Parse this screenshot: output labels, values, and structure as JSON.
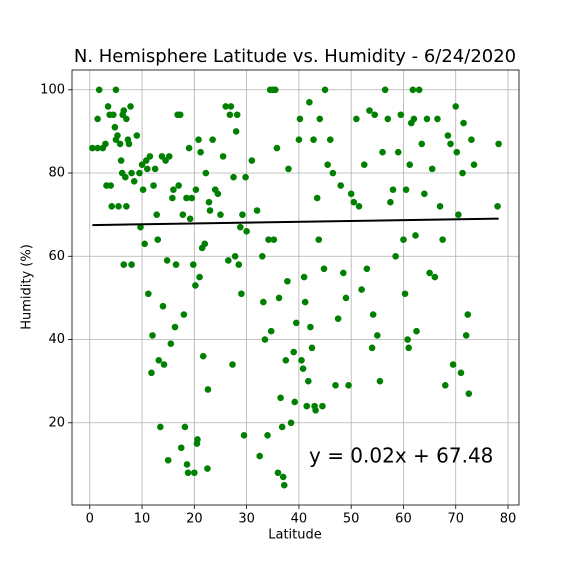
{
  "chart_data": {
    "type": "scatter",
    "title": "N. Hemisphere Latitude vs. Humidity - 6/24/2020",
    "x_label": "Latitude",
    "y_label": "Humidity (%)",
    "annotation": "y = 0.02x + 67.48",
    "color": "#008000",
    "grid": true,
    "xlim": [
      -3.4,
      82.1
    ],
    "ylim": [
      0.25,
      104.75
    ],
    "xticks": [
      0,
      10,
      20,
      30,
      40,
      50,
      60,
      70,
      80
    ],
    "yticks": [
      20,
      40,
      60,
      80,
      100
    ],
    "x": [
      0.5,
      1.5,
      1.8,
      1.5,
      2.5,
      3,
      3.2,
      3.5,
      3.8,
      4,
      4.2,
      4.5,
      4.8,
      5,
      5,
      5.3,
      5.5,
      5.8,
      6,
      6.2,
      6.3,
      6.5,
      6.5,
      6.8,
      7,
      7,
      7.3,
      7.5,
      7.8,
      8,
      8,
      8.5,
      9,
      9.5,
      9.7,
      10,
      10.2,
      10.5,
      10.8,
      11,
      11.2,
      11.5,
      11.8,
      12,
      12.2,
      12.5,
      12.8,
      13,
      13.2,
      13.5,
      13.8,
      14,
      14.2,
      14.5,
      14.8,
      15,
      15.2,
      15.5,
      15.8,
      16,
      16.3,
      16.5,
      16.8,
      17,
      17.3,
      17.5,
      17.8,
      18,
      18.2,
      18.5,
      18.6,
      18.8,
      19,
      19.2,
      19.5,
      19.8,
      20,
      20.2,
      20.3,
      20.5,
      20.6,
      20.8,
      21,
      21.2,
      21.5,
      21.7,
      22,
      22.2,
      22.5,
      22.6,
      22.8,
      23,
      23.5,
      24,
      24.5,
      25,
      25.5,
      26,
      26.5,
      26.8,
      27,
      27.3,
      27.5,
      27.8,
      28,
      28.2,
      28.5,
      28.8,
      29,
      29.2,
      29.5,
      29.8,
      30,
      31,
      32,
      32.5,
      33,
      33.2,
      33.5,
      34,
      34.2,
      34.5,
      34.7,
      35,
      35.2,
      35.5,
      35.8,
      36,
      36.2,
      36.5,
      36.8,
      37,
      37.2,
      37.5,
      37.8,
      38,
      38.5,
      39,
      39.2,
      39.5,
      40,
      40.2,
      40.5,
      40.8,
      41,
      41.2,
      41.5,
      41.8,
      42,
      42.2,
      42.5,
      42.8,
      43,
      43.2,
      43.5,
      43.8,
      44,
      44.5,
      44.8,
      45,
      45.5,
      46,
      46.5,
      47,
      47.5,
      48,
      48.5,
      49,
      49.5,
      50,
      50.5,
      51,
      51.5,
      52,
      52.5,
      53,
      53.5,
      54,
      54.2,
      54.5,
      55,
      55.5,
      56,
      56.5,
      57,
      57.5,
      58,
      58.5,
      59,
      59.5,
      60,
      60.3,
      60.5,
      60.8,
      61,
      61.2,
      61.5,
      61.8,
      62,
      62.3,
      62.5,
      63,
      63.5,
      64,
      64.5,
      65,
      65.5,
      66,
      66.5,
      67,
      67.5,
      68,
      68.5,
      69,
      69.5,
      70,
      70.2,
      70.5,
      71,
      71.3,
      71.5,
      72,
      72.3,
      72.5,
      73,
      73.5,
      78,
      78.2
    ],
    "values": [
      86,
      93,
      100,
      86,
      86,
      87,
      77,
      96,
      94,
      77,
      72,
      94,
      91,
      100,
      88,
      89,
      72,
      87,
      83,
      80,
      94,
      95,
      58,
      79,
      93,
      72,
      88,
      87,
      96,
      58,
      80,
      78,
      89,
      80,
      67,
      82,
      76,
      63,
      83,
      81,
      51,
      84,
      32,
      41,
      77,
      81,
      70,
      64,
      35,
      19,
      84,
      48,
      34,
      83,
      59,
      11,
      84,
      39,
      74,
      76,
      43,
      58,
      94,
      77,
      94,
      14,
      70,
      46,
      19,
      74,
      10,
      8,
      86,
      69,
      74,
      58,
      8,
      53,
      76,
      15,
      16,
      88,
      55,
      85,
      62,
      36,
      63,
      80,
      9,
      28,
      73,
      71,
      88,
      76,
      75,
      70,
      84,
      96,
      59,
      94,
      96,
      34,
      79,
      60,
      90,
      94,
      58,
      67,
      51,
      70,
      17,
      79,
      66,
      83,
      71,
      12,
      60,
      49,
      40,
      17,
      64,
      100,
      42,
      100,
      64,
      100,
      86,
      8,
      50,
      26,
      19,
      7,
      5,
      35,
      54,
      81,
      20,
      37,
      25,
      44,
      88,
      93,
      35,
      33,
      55,
      49,
      24,
      30,
      97,
      43,
      38,
      88,
      24,
      23,
      74,
      64,
      93,
      24,
      57,
      100,
      82,
      88,
      80,
      29,
      45,
      77,
      56,
      50,
      29,
      75,
      73,
      93,
      72,
      52,
      82,
      57,
      95,
      38,
      46,
      94,
      41,
      30,
      85,
      100,
      93,
      73,
      76,
      60,
      85,
      94,
      64,
      51,
      76,
      40,
      38,
      82,
      92,
      100,
      93,
      65,
      42,
      100,
      87,
      75,
      93,
      56,
      81,
      55,
      93,
      72,
      64,
      29,
      89,
      87,
      34,
      96,
      85,
      70,
      32,
      80,
      92,
      41,
      46,
      27,
      88,
      82,
      72,
      87
    ],
    "regression": {
      "color": "#000000",
      "x": [
        0.5,
        78.2
      ],
      "values": [
        67.49,
        69.04
      ]
    }
  }
}
